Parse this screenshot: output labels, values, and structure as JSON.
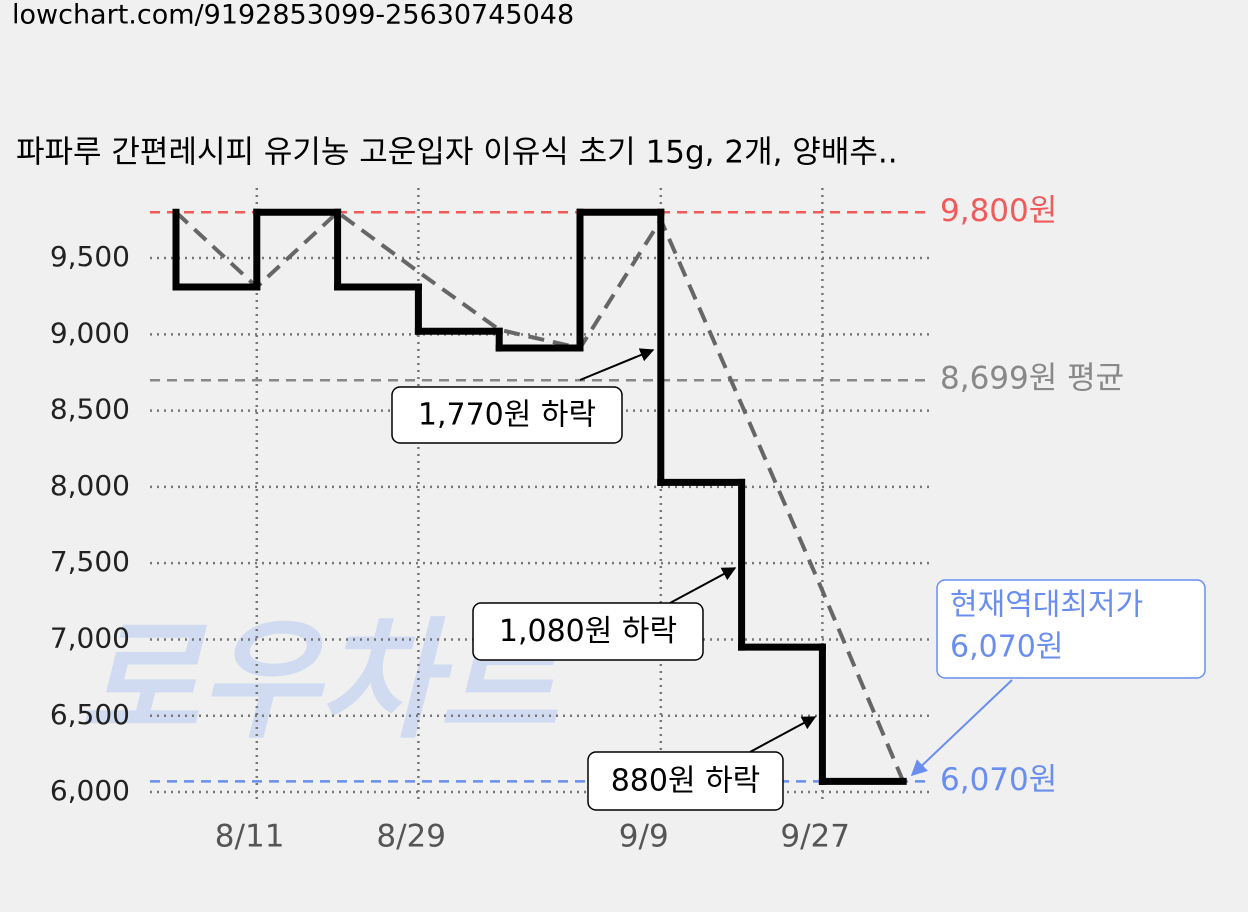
{
  "url": "lowchart.com/9192853099-25630745048",
  "watermark": "로우차트",
  "chart_data": {
    "type": "step",
    "title": "파파루 간편레시피 유기농 고운입자 이유식 초기 15g, 2개, 양배추..",
    "categories": [
      null,
      "8/11",
      null,
      "8/29",
      null,
      null,
      "9/9",
      null,
      "9/27",
      null
    ],
    "series": [
      {
        "color": "#000000",
        "style": "step",
        "values": [
          9800,
          9310,
          9800,
          9310,
          9020,
          8910,
          9800,
          8030,
          6950,
          6070
        ]
      },
      {
        "color": "#666666",
        "style": "dashed",
        "values": [
          9800,
          9310,
          9800,
          9410,
          9030,
          8910,
          9750,
          8540,
          7320,
          6070
        ]
      }
    ],
    "ylim": [
      5900,
      9900
    ],
    "yticks": [
      {
        "value": 6000,
        "label": "6,000"
      },
      {
        "value": 6500,
        "label": "6,500"
      },
      {
        "value": 7000,
        "label": "7,000"
      },
      {
        "value": 7500,
        "label": "7,500"
      },
      {
        "value": 8000,
        "label": "8,000"
      },
      {
        "value": 8500,
        "label": "8,500"
      },
      {
        "value": 9000,
        "label": "9,000"
      },
      {
        "value": 9500,
        "label": "9,500"
      }
    ],
    "grid": true,
    "reference_lines": [
      {
        "value": 9800,
        "label": "9,800원",
        "color": "#f05a5a"
      },
      {
        "value": 8699,
        "label": "8,699원 평균",
        "color": "#888888"
      },
      {
        "value": 6070,
        "label": "6,070원",
        "color": "#6a8ef0"
      }
    ],
    "annotations": [
      "1,770원 하락",
      "1,080원 하락",
      "880원 하락"
    ],
    "callout": [
      "현재역대최저가",
      "6,070원"
    ]
  }
}
